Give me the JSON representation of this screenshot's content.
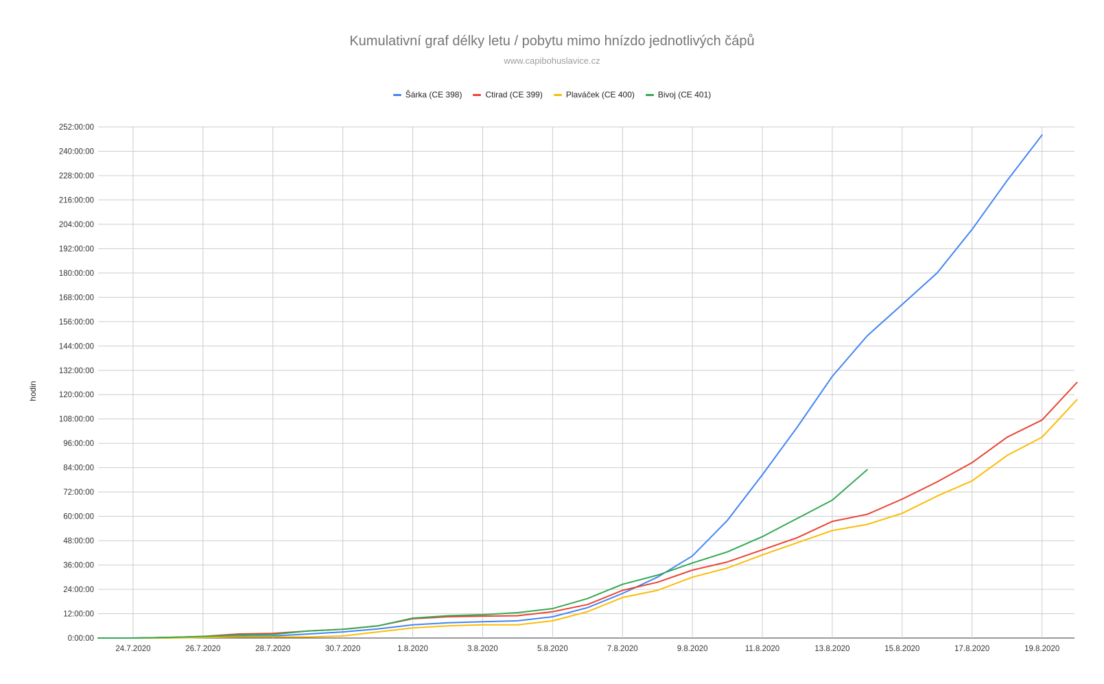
{
  "chart_data": {
    "type": "line",
    "title": "Kumulativní graf délky letu / pobytu mimo hnízdo jednotlivých čápů",
    "subtitle": "www.capibohuslavice.cz",
    "ylabel": "hodin",
    "xlabel": "",
    "x_tick_labels": [
      "24.7.2020",
      "26.7.2020",
      "28.7.2020",
      "30.7.2020",
      "1.8.2020",
      "3.8.2020",
      "5.8.2020",
      "7.8.2020",
      "9.8.2020",
      "11.8.2020",
      "13.8.2020",
      "15.8.2020",
      "17.8.2020",
      "19.8.2020"
    ],
    "y_tick_labels": [
      "0:00:00",
      "12:00:00",
      "24:00:00",
      "36:00:00",
      "48:00:00",
      "60:00:00",
      "72:00:00",
      "84:00:00",
      "96:00:00",
      "108:00:00",
      "120:00:00",
      "132:00:00",
      "144:00:00",
      "156:00:00",
      "168:00:00",
      "180:00:00",
      "192:00:00",
      "204:00:00",
      "216:00:00",
      "228:00:00",
      "240:00:00",
      "252:00:00"
    ],
    "ylim": [
      0,
      252
    ],
    "x_dates": [
      "23.7.2020",
      "24.7.2020",
      "25.7.2020",
      "26.7.2020",
      "27.7.2020",
      "28.7.2020",
      "29.7.2020",
      "30.7.2020",
      "31.7.2020",
      "1.8.2020",
      "2.8.2020",
      "3.8.2020",
      "4.8.2020",
      "5.8.2020",
      "6.8.2020",
      "7.8.2020",
      "8.8.2020",
      "9.8.2020",
      "10.8.2020",
      "11.8.2020",
      "12.8.2020",
      "13.8.2020",
      "14.8.2020",
      "15.8.2020",
      "16.8.2020",
      "17.8.2020",
      "18.8.2020",
      "19.8.2020",
      "20.8.2020"
    ],
    "grid": true,
    "legend_position": "top",
    "series": [
      {
        "name": "Šárka (CE 398)",
        "color": "#4285f4",
        "values": [
          0,
          0,
          0.3,
          0.5,
          0.8,
          1.0,
          2.0,
          3.0,
          4.5,
          6.5,
          7.5,
          8.0,
          8.5,
          10.5,
          15.0,
          22.0,
          30.0,
          40.5,
          58.0,
          80.5,
          104.0,
          129.0,
          149.0,
          164.5,
          180.0,
          201.5,
          225.5,
          248.0,
          null
        ]
      },
      {
        "name": "Ctirad (CE 399)",
        "color": "#ea4335",
        "values": [
          0,
          0,
          0.3,
          0.8,
          2.0,
          2.3,
          3.5,
          4.3,
          6.0,
          9.5,
          10.5,
          10.8,
          11.0,
          13.0,
          16.5,
          23.5,
          27.5,
          33.5,
          37.5,
          43.5,
          49.5,
          57.5,
          61.0,
          68.5,
          77.0,
          86.5,
          99.0,
          107.5,
          126.0
        ]
      },
      {
        "name": "Plaváček (CE 400)",
        "color": "#fbbc04",
        "values": [
          0,
          0,
          0,
          0.3,
          0.5,
          0.5,
          0.5,
          1.0,
          3.0,
          5.0,
          6.0,
          6.5,
          6.5,
          8.5,
          13.0,
          20.0,
          23.5,
          30.0,
          34.5,
          41.0,
          47.0,
          53.0,
          56.0,
          61.5,
          70.0,
          77.5,
          90.0,
          99.0,
          117.5
        ]
      },
      {
        "name": "Bivoj (CE 401)",
        "color": "#34a853",
        "values": [
          0,
          0,
          0.3,
          0.8,
          1.5,
          1.8,
          3.5,
          4.3,
          6.0,
          9.8,
          11.0,
          11.5,
          12.5,
          14.5,
          19.5,
          26.5,
          31.0,
          37.0,
          42.5,
          50.0,
          59.0,
          68.0,
          83.0,
          null,
          null,
          null,
          null,
          null,
          null
        ]
      }
    ]
  }
}
